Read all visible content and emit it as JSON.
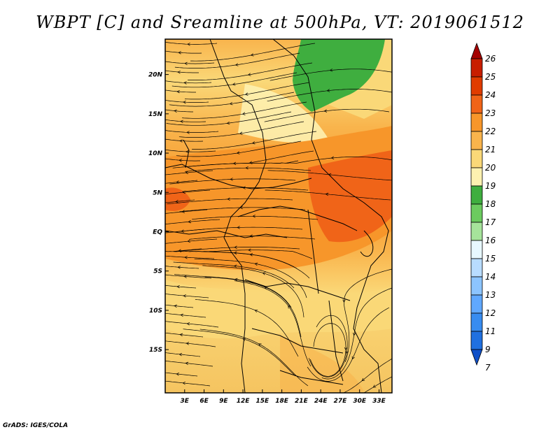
{
  "title": "WBPT [C] and Sreamline at 500hPa, VT: 2019061512",
  "footer": "GrADS: IGES/COLA",
  "map": {
    "lon_range": [
      0,
      35
    ],
    "lat_range": [
      -20.5,
      24.5
    ],
    "lon_ticks": [
      "3E",
      "6E",
      "9E",
      "12E",
      "15E",
      "18E",
      "21E",
      "24E",
      "27E",
      "30E",
      "33E"
    ],
    "lat_ticks": [
      "20N",
      "15N",
      "10N",
      "5N",
      "EQ",
      "5S",
      "10S",
      "15S"
    ]
  },
  "colorbar": {
    "labels": [
      "26",
      "25",
      "24",
      "23",
      "22",
      "21",
      "20",
      "19",
      "18",
      "17",
      "16",
      "15",
      "14",
      "13",
      "12",
      "11",
      "9",
      "7"
    ],
    "colors": [
      "#a50000",
      "#c81e00",
      "#e03c00",
      "#f06418",
      "#f7962a",
      "#f9b44c",
      "#fad878",
      "#fdf1b0",
      "#3fae3f",
      "#6ccb5f",
      "#a6e49b",
      "#e8f8ff",
      "#b8dcff",
      "#8cc4ff",
      "#60a8ff",
      "#388cf0",
      "#2070e0",
      "#1050c8"
    ]
  }
}
